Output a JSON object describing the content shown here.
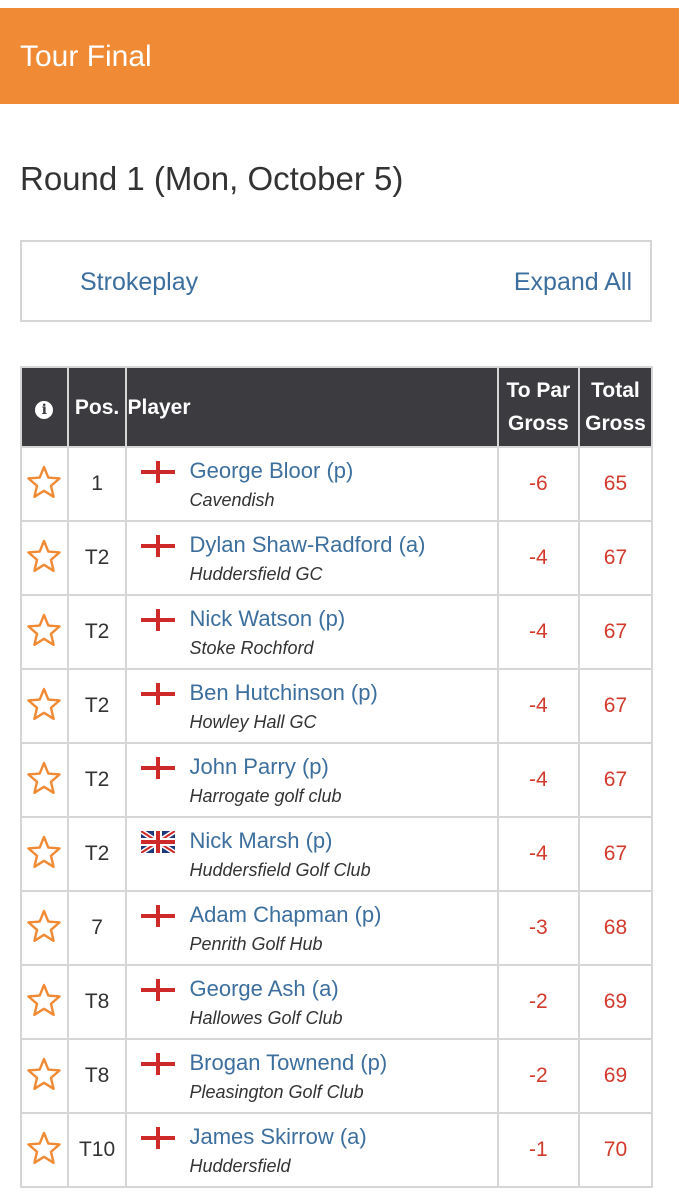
{
  "header": {
    "title": "Tour Final"
  },
  "round_title": "Round 1 (Mon, October 5)",
  "tabs": {
    "strokeplay": "Strokeplay",
    "expand_all": "Expand All"
  },
  "colors": {
    "brand": "#f08a34",
    "header_bg": "#3c3b3f",
    "link": "#3d6f9e",
    "score": "#d23a2c",
    "star": "#f08a34"
  },
  "table": {
    "columns": {
      "info": "info-icon",
      "pos": "Pos.",
      "player": "Player",
      "to_par_line1": "To Par",
      "to_par_line2": "Gross",
      "total_line1": "Total",
      "total_line2": "Gross"
    },
    "rows": [
      {
        "pos": "1",
        "flag": "england",
        "name": "George Bloor (p)",
        "club": "Cavendish",
        "to_par": "-6",
        "total": "65"
      },
      {
        "pos": "T2",
        "flag": "england",
        "name": "Dylan Shaw-Radford (a)",
        "club": "Huddersfield GC",
        "to_par": "-4",
        "total": "67"
      },
      {
        "pos": "T2",
        "flag": "england",
        "name": "Nick Watson (p)",
        "club": "Stoke Rochford",
        "to_par": "-4",
        "total": "67"
      },
      {
        "pos": "T2",
        "flag": "england",
        "name": "Ben Hutchinson (p)",
        "club": "Howley Hall GC",
        "to_par": "-4",
        "total": "67"
      },
      {
        "pos": "T2",
        "flag": "england",
        "name": "John Parry (p)",
        "club": "Harrogate golf club",
        "to_par": "-4",
        "total": "67"
      },
      {
        "pos": "T2",
        "flag": "uk",
        "name": "Nick Marsh (p)",
        "club": "Huddersfield Golf Club",
        "to_par": "-4",
        "total": "67"
      },
      {
        "pos": "7",
        "flag": "england",
        "name": "Adam Chapman (p)",
        "club": "Penrith Golf Hub",
        "to_par": "-3",
        "total": "68"
      },
      {
        "pos": "T8",
        "flag": "england",
        "name": "George Ash (a)",
        "club": "Hallowes Golf Club",
        "to_par": "-2",
        "total": "69"
      },
      {
        "pos": "T8",
        "flag": "england",
        "name": "Brogan Townend (p)",
        "club": "Pleasington Golf Club",
        "to_par": "-2",
        "total": "69"
      },
      {
        "pos": "T10",
        "flag": "england",
        "name": "James Skirrow (a)",
        "club": "Huddersfield",
        "to_par": "-1",
        "total": "70"
      }
    ]
  }
}
